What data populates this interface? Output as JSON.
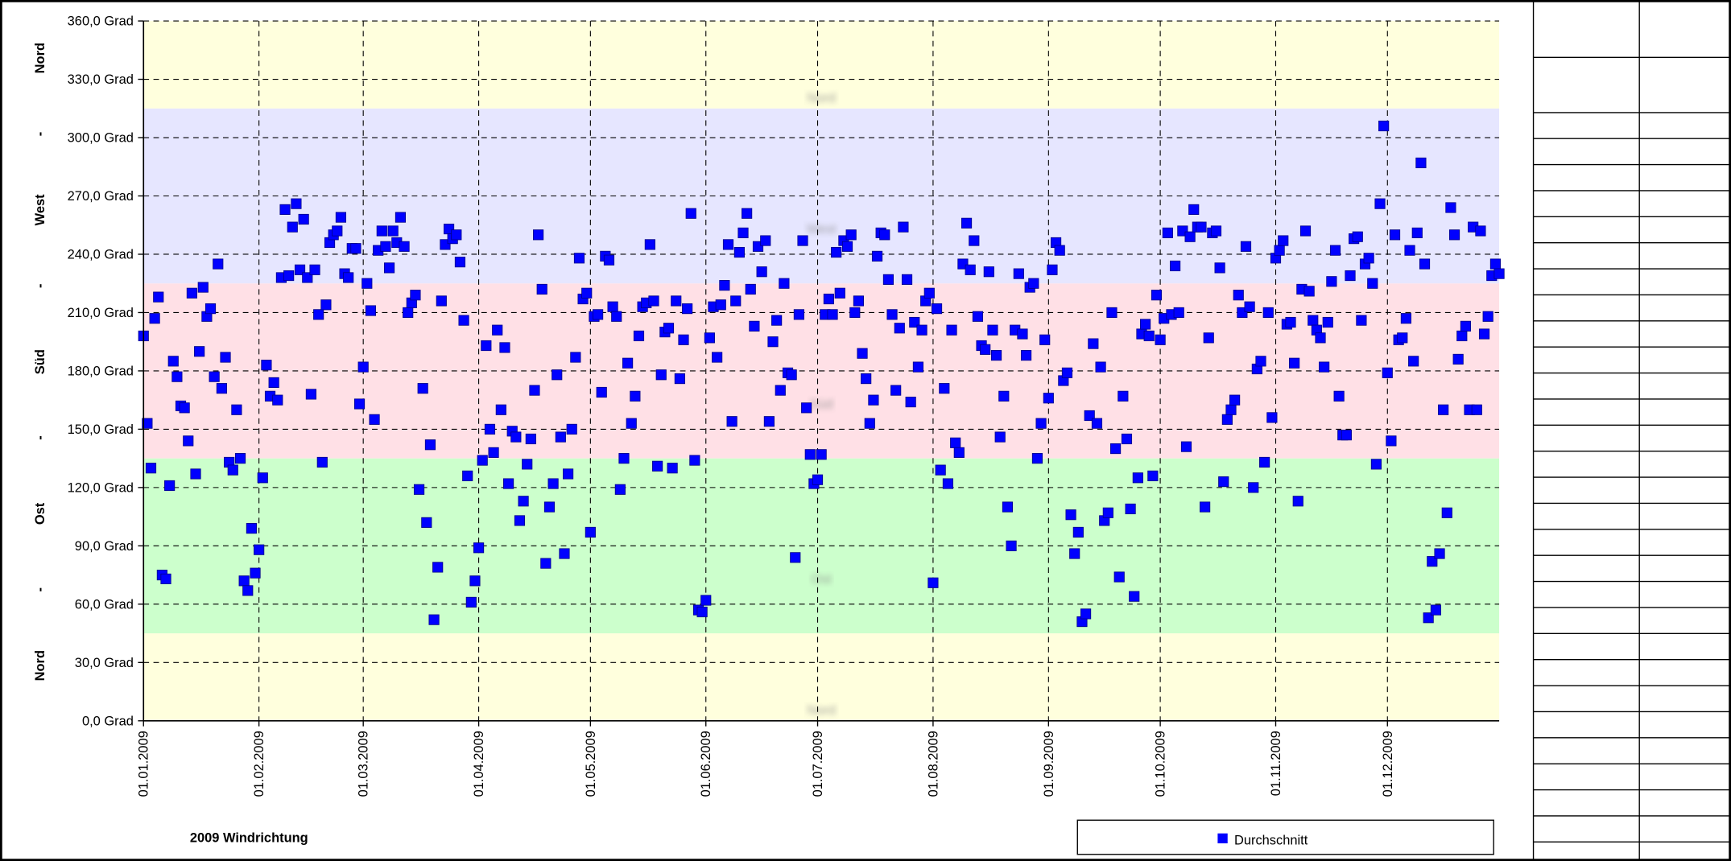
{
  "chart_data": {
    "type": "scatter",
    "title": "2009 Windrichtung",
    "xlim": [
      "01.01.2009",
      "31.12.2009"
    ],
    "xticks": [
      "01.01.2009",
      "01.02.2009",
      "01.03.2009",
      "01.04.2009",
      "01.05.2009",
      "01.06.2009",
      "01.07.2009",
      "01.08.2009",
      "01.09.2009",
      "01.10.2009",
      "01.11.2009",
      "01.12.2009"
    ],
    "ylim": [
      0,
      360
    ],
    "yticks": [
      {
        "value": 0,
        "label": "0,0 Grad"
      },
      {
        "value": 30,
        "label": "30,0 Grad"
      },
      {
        "value": 60,
        "label": "60,0 Grad"
      },
      {
        "value": 90,
        "label": "90,0 Grad"
      },
      {
        "value": 120,
        "label": "120,0 Grad"
      },
      {
        "value": 150,
        "label": "150,0 Grad"
      },
      {
        "value": 180,
        "label": "180,0 Grad"
      },
      {
        "value": 210,
        "label": "210,0 Grad"
      },
      {
        "value": 240,
        "label": "240,0 Grad"
      },
      {
        "value": 270,
        "label": "270,0 Grad"
      },
      {
        "value": 300,
        "label": "300,0 Grad"
      },
      {
        "value": 330,
        "label": "330,0 Grad"
      },
      {
        "value": 360,
        "label": "360,0 Grad"
      }
    ],
    "grid": true,
    "left_labels": [
      "Nord",
      "-",
      "Ost",
      "-",
      "Süd",
      "-",
      "West",
      "-",
      "Nord"
    ],
    "bands": [
      {
        "label": "Nord",
        "from": 0,
        "to": 45,
        "color": "#ffffdd"
      },
      {
        "label": "Ost",
        "from": 45,
        "to": 135,
        "color": "#ccffcc"
      },
      {
        "label": "Süd",
        "from": 135,
        "to": 225,
        "color": "#ffe0e6"
      },
      {
        "label": "West",
        "from": 225,
        "to": 315,
        "color": "#e6e6ff"
      },
      {
        "label": "Nord",
        "from": 315,
        "to": 360,
        "color": "#ffffdd"
      }
    ],
    "series": [
      {
        "name": "Durchschnitt",
        "color": "#0000ff",
        "values": [
          198,
          153,
          130,
          207,
          218,
          75,
          73,
          121,
          185,
          177,
          162,
          161,
          144,
          220,
          127,
          190,
          223,
          208,
          212,
          177,
          235,
          171,
          187,
          133,
          129,
          160,
          135,
          72,
          67,
          99,
          76,
          88,
          125,
          183,
          167,
          174,
          165,
          228,
          263,
          229,
          254,
          266,
          232,
          258,
          228,
          168,
          232,
          209,
          133,
          214,
          246,
          250,
          252,
          259,
          230,
          228,
          243,
          243,
          163,
          182,
          225,
          211,
          155,
          242,
          252,
          244,
          233,
          252,
          246,
          259,
          244,
          210,
          215,
          219,
          119,
          171,
          102,
          142,
          52,
          79,
          216,
          245,
          253,
          248,
          250,
          236,
          206,
          126,
          61,
          72,
          89,
          134,
          193,
          150,
          138,
          201,
          160,
          192,
          122,
          149,
          146,
          103,
          113,
          132,
          145,
          170,
          250,
          222,
          81,
          110,
          122,
          178,
          146,
          86,
          127,
          150,
          187,
          238,
          217,
          220,
          97,
          208,
          209,
          169,
          239,
          237,
          213,
          208,
          119,
          135,
          184,
          153,
          167,
          198,
          213,
          215,
          245,
          216,
          131,
          178,
          200,
          202,
          130,
          216,
          176,
          196,
          212,
          261,
          134,
          57,
          56,
          62,
          197,
          213,
          187,
          214,
          224,
          245,
          154,
          216,
          241,
          251,
          261,
          222,
          203,
          244,
          231,
          247,
          154,
          195,
          206,
          170,
          225,
          179,
          178,
          84,
          209,
          247,
          161,
          137,
          122,
          124,
          137,
          209,
          217,
          209,
          241,
          220,
          247,
          244,
          250,
          210,
          216,
          189,
          176,
          153,
          165,
          239,
          251,
          250,
          227,
          209,
          170,
          202,
          254,
          227,
          164,
          205,
          182,
          201,
          216,
          220,
          71,
          212,
          129,
          171,
          122,
          201,
          143,
          138,
          235,
          256,
          232,
          247,
          208,
          193,
          191,
          231,
          201,
          188,
          146,
          167,
          110,
          90,
          201,
          230,
          199,
          188,
          223,
          225,
          135,
          153,
          196,
          166,
          232,
          246,
          242,
          175,
          179,
          106,
          86,
          97,
          51,
          55,
          157,
          194,
          153,
          182,
          103,
          107,
          210,
          140,
          74,
          167,
          145,
          109,
          64,
          125,
          199,
          204,
          198,
          126,
          219,
          196,
          207,
          251,
          209,
          234,
          210,
          252,
          141,
          249,
          263,
          254,
          254,
          110,
          197,
          251,
          252,
          233,
          123,
          155,
          160,
          165,
          219,
          210,
          244,
          213,
          120,
          181,
          185,
          133,
          210,
          156,
          238,
          242,
          247,
          204,
          205,
          184,
          113,
          222,
          252,
          221,
          206,
          201,
          197,
          182,
          205,
          226,
          242,
          167,
          147,
          147,
          229,
          248,
          249,
          206,
          235,
          238,
          225,
          132,
          266,
          306,
          179,
          144,
          250,
          196,
          197,
          207,
          242,
          185,
          251,
          287,
          235,
          53,
          82,
          57,
          86,
          160,
          107,
          264,
          250,
          186,
          198,
          203,
          160,
          254,
          160,
          252,
          199,
          208,
          229,
          235,
          230
        ]
      }
    ]
  }
}
